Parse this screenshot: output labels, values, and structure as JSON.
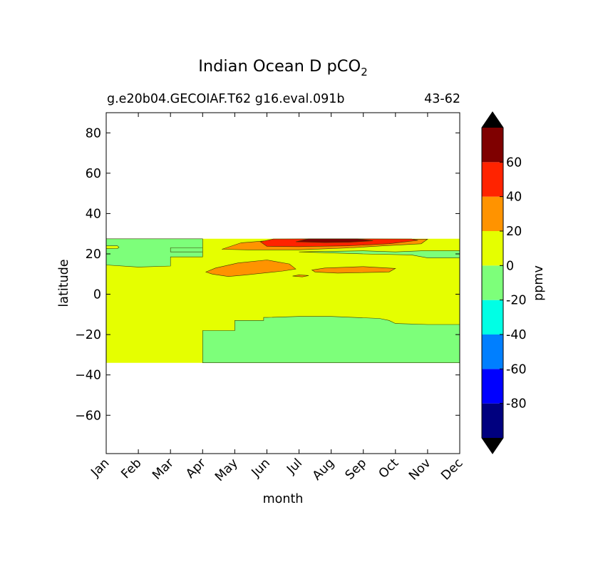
{
  "chart_data": {
    "type": "contourf",
    "title": "Indian Ocean D pCO",
    "title_subscript": "2",
    "subtitle_left": "g.e20b04.GECOIAF.T62 g16.eval.091b",
    "subtitle_right": "43-62",
    "xlabel": "month",
    "ylabel": "latitude",
    "x_categories": [
      "Jan",
      "Feb",
      "Mar",
      "Apr",
      "May",
      "Jun",
      "Jul",
      "Aug",
      "Sep",
      "Oct",
      "Nov",
      "Dec"
    ],
    "xlim": [
      0,
      11
    ],
    "ylim": [
      -79,
      90
    ],
    "yticks": [
      80,
      60,
      40,
      20,
      0,
      -20,
      -40,
      -60
    ],
    "ytick_labels": [
      "80",
      "60",
      "40",
      "20",
      "0",
      "−20",
      "−40",
      "−60"
    ],
    "data_extent": {
      "lat_min": -34,
      "lat_max": 27.5
    },
    "colorbar": {
      "label": "ppmv",
      "levels": [
        -100,
        -80,
        -60,
        -40,
        -20,
        0,
        20,
        40,
        60,
        80
      ],
      "tick_values": [
        60,
        40,
        20,
        0,
        -20,
        -40,
        -60,
        -80
      ],
      "tick_labels": [
        "60",
        "40",
        "20",
        "0",
        "-20",
        "-40",
        "-60",
        "-80"
      ],
      "colors": [
        "#00007f",
        "#0000ff",
        "#007fff",
        "#00ffe5",
        "#7dff7a",
        "#e5ff00",
        "#ff9300",
        "#ff2300",
        "#7f0000"
      ],
      "extend_min_color": "#000000",
      "extend_max_color": "#000000"
    },
    "regions": [
      {
        "level": "0 to 20",
        "color": "#e5ff00",
        "name": "background",
        "points": [
          [
            0,
            -34
          ],
          [
            11,
            -34
          ],
          [
            11,
            27.5
          ],
          [
            0,
            27.5
          ]
        ]
      },
      {
        "level": "-20 to 0",
        "color": "#7dff7a",
        "name": "south-low",
        "points": [
          [
            3,
            -34
          ],
          [
            11,
            -34
          ],
          [
            11,
            -15
          ],
          [
            10,
            -15
          ],
          [
            9,
            -14.5
          ],
          [
            8.8,
            -13
          ],
          [
            8.5,
            -12
          ],
          [
            7,
            -11
          ],
          [
            6,
            -11
          ],
          [
            5,
            -11.5
          ],
          [
            4.9,
            -11.5
          ],
          [
            4.9,
            -13
          ],
          [
            4,
            -13
          ],
          [
            4,
            -18
          ],
          [
            3,
            -18
          ]
        ]
      },
      {
        "level": "-20 to 0",
        "color": "#7dff7a",
        "name": "northwest-low",
        "points": [
          [
            0,
            27.5
          ],
          [
            3,
            27.5
          ],
          [
            3,
            21
          ],
          [
            2,
            21
          ],
          [
            2,
            23
          ],
          [
            3,
            23
          ],
          [
            3,
            27.5
          ],
          [
            3,
            18.5
          ],
          [
            2,
            18.5
          ],
          [
            2,
            14
          ],
          [
            1,
            13.5
          ],
          [
            0,
            14.5
          ]
        ]
      },
      {
        "level": "0 to 20",
        "color": "#e5ff00",
        "name": "northwest-island",
        "points": [
          [
            0,
            24
          ],
          [
            0.35,
            24
          ],
          [
            0.4,
            23.3
          ],
          [
            0.35,
            22.7
          ],
          [
            0,
            22.6
          ]
        ]
      },
      {
        "level": "-20 to 0",
        "color": "#7dff7a",
        "name": "northeast-low",
        "points": [
          [
            6,
            21
          ],
          [
            8,
            20
          ],
          [
            9.5,
            19.5
          ],
          [
            10,
            18
          ],
          [
            11,
            18
          ],
          [
            11,
            21.5
          ],
          [
            9.8,
            21.5
          ],
          [
            9,
            21
          ],
          [
            8,
            21.5
          ]
        ]
      },
      {
        "level": "20 to 40",
        "color": "#ff9300",
        "name": "north-positive",
        "points": [
          [
            3.6,
            22.3
          ],
          [
            4.2,
            25.5
          ],
          [
            5,
            26.5
          ],
          [
            7,
            27.3
          ],
          [
            10,
            27.3
          ],
          [
            9.8,
            25
          ],
          [
            8.6,
            24
          ],
          [
            7.6,
            23
          ],
          [
            6,
            22
          ],
          [
            4.4,
            22
          ],
          [
            3.6,
            22.3
          ]
        ]
      },
      {
        "level": "40 to 60",
        "color": "#ff2300",
        "name": "north-high",
        "points": [
          [
            4.8,
            26
          ],
          [
            5.2,
            27.4
          ],
          [
            7,
            27.5
          ],
          [
            9.5,
            27.4
          ],
          [
            9.7,
            26.7
          ],
          [
            8.8,
            25
          ],
          [
            7.5,
            24
          ],
          [
            6,
            23.6
          ],
          [
            5,
            23.7
          ]
        ]
      },
      {
        "level": "60 to 80",
        "color": "#7f0000",
        "name": "north-peak",
        "points": [
          [
            5.9,
            26
          ],
          [
            6.3,
            27.5
          ],
          [
            7.8,
            27.5
          ],
          [
            8.3,
            26.5
          ],
          [
            7.6,
            25.8
          ],
          [
            6.8,
            25.6
          ]
        ]
      },
      {
        "level": "20 to 40",
        "color": "#ff9300",
        "name": "may-positive",
        "points": [
          [
            3.1,
            11
          ],
          [
            3.4,
            13
          ],
          [
            4.1,
            15.5
          ],
          [
            5,
            17
          ],
          [
            5.7,
            15
          ],
          [
            5.9,
            12.5
          ],
          [
            5.5,
            11.5
          ],
          [
            4.3,
            9.5
          ],
          [
            3.8,
            8.8
          ],
          [
            3.3,
            10
          ]
        ]
      },
      {
        "level": "20 to 40",
        "color": "#ff9300",
        "name": "aug-positive",
        "points": [
          [
            6.4,
            12
          ],
          [
            6.8,
            13
          ],
          [
            8,
            13.7
          ],
          [
            9,
            12.8
          ],
          [
            8.8,
            11
          ],
          [
            7.2,
            10.5
          ],
          [
            6.5,
            11
          ]
        ]
      },
      {
        "level": "20 to 40",
        "color": "#ff9300",
        "name": "jul-positive",
        "points": [
          [
            5.8,
            9
          ],
          [
            6,
            9.6
          ],
          [
            6.3,
            9.3
          ],
          [
            6.1,
            8.6
          ]
        ]
      }
    ]
  }
}
